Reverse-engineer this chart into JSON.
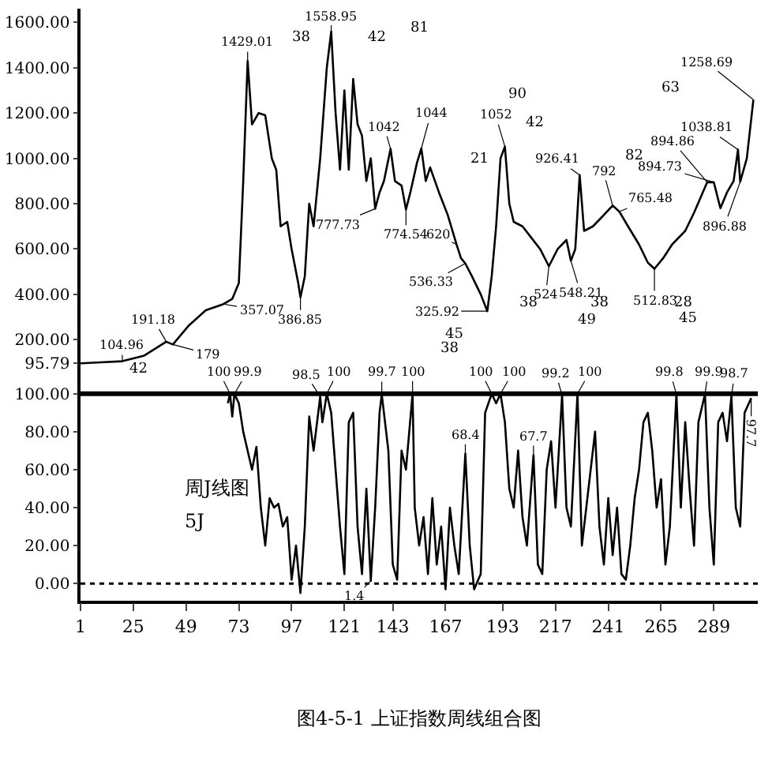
{
  "chart_data": [
    {
      "type": "line",
      "tick_labels": "y",
      "color": "#000000",
      "marker": "none",
      "line_style": "solid",
      "x": [
        1,
        10,
        20,
        30,
        40,
        43,
        50,
        58,
        66,
        70,
        73,
        75,
        77,
        79,
        82,
        85,
        88,
        90,
        92,
        95,
        97,
        100,
        101,
        103,
        105,
        107,
        110,
        113,
        115,
        117,
        119,
        121,
        123,
        125,
        127,
        129,
        131,
        133,
        135,
        137,
        139,
        142,
        144,
        147,
        149,
        151,
        154,
        156,
        158,
        160,
        164,
        168,
        172,
        174,
        176,
        179,
        183,
        186,
        188,
        190,
        192,
        194,
        196,
        198,
        202,
        206,
        210,
        214,
        218,
        222,
        224,
        226,
        228,
        230,
        234,
        238,
        243,
        246,
        250,
        255,
        259,
        262,
        266,
        270,
        276,
        280,
        286,
        289,
        292,
        295,
        298,
        300,
        301,
        304,
        307
      ],
      "values": [
        95.79,
        100,
        104.96,
        130,
        191.18,
        179,
        260,
        330,
        357.07,
        380,
        450,
        900,
        1429.01,
        1150,
        1200,
        1190,
        1000,
        950,
        700,
        720,
        600,
        450,
        386.85,
        480,
        800,
        700,
        1000,
        1400,
        1558.95,
        1200,
        950,
        1300,
        950,
        1350,
        1150,
        1100,
        900,
        1000,
        777.73,
        850,
        900,
        1042,
        900,
        880,
        774.54,
        850,
        980,
        1044,
        900,
        960,
        850,
        750,
        620,
        560,
        536.33,
        480,
        400,
        325.92,
        480,
        700,
        1000,
        1052,
        800,
        720,
        700,
        650,
        600,
        524,
        600,
        640,
        548.21,
        600,
        926.41,
        680,
        700,
        740,
        792,
        765.48,
        700,
        620,
        540,
        512.83,
        560,
        620,
        680,
        760,
        894.86,
        894.73,
        780,
        850,
        900,
        1038.81,
        896.88,
        1000,
        1258.69
      ],
      "xlim": [
        1,
        309
      ],
      "ylim": [
        20,
        1660
      ],
      "yticks": [
        {
          "value": 95.79,
          "label": "95.79"
        },
        {
          "value": 200,
          "label": "200.00"
        },
        {
          "value": 400,
          "label": "400.00"
        },
        {
          "value": 600,
          "label": "600.00"
        },
        {
          "value": 800,
          "label": "800.00"
        },
        {
          "value": 1000,
          "label": "1000.00"
        },
        {
          "value": 1200,
          "label": "1200.00"
        },
        {
          "value": 1400,
          "label": "1400.00"
        },
        {
          "value": 1600,
          "label": "1600.00"
        }
      ],
      "annotations": [
        {
          "text": "104.96",
          "x": 20,
          "y": 104.96
        },
        {
          "text": "191.18",
          "x": 40,
          "y": 191.18
        },
        {
          "text": "179",
          "x": 43,
          "y": 179
        },
        {
          "text": "357.07",
          "x": 66,
          "y": 357.07
        },
        {
          "text": "1429.01",
          "x": 77,
          "y": 1429.01
        },
        {
          "text": "386.85",
          "x": 101,
          "y": 386.85
        },
        {
          "text": "1558.95",
          "x": 115,
          "y": 1558.95
        },
        {
          "text": "777.73",
          "x": 135,
          "y": 777.73
        },
        {
          "text": "1042",
          "x": 142,
          "y": 1042
        },
        {
          "text": "774.54",
          "x": 149,
          "y": 774.54
        },
        {
          "text": "1044",
          "x": 156,
          "y": 1044
        },
        {
          "text": "620",
          "x": 172,
          "y": 620
        },
        {
          "text": "536.33",
          "x": 176,
          "y": 536.33
        },
        {
          "text": "325.92",
          "x": 186,
          "y": 325.92
        },
        {
          "text": "1052",
          "x": 194,
          "y": 1052
        },
        {
          "text": "524",
          "x": 214,
          "y": 524
        },
        {
          "text": "548.21",
          "x": 224,
          "y": 548.21
        },
        {
          "text": "926.41",
          "x": 228,
          "y": 926.41
        },
        {
          "text": "792",
          "x": 243,
          "y": 792
        },
        {
          "text": "765.48",
          "x": 246,
          "y": 765.48
        },
        {
          "text": "512.83",
          "x": 262,
          "y": 512.83
        },
        {
          "text": "894.86",
          "x": 286,
          "y": 894.86
        },
        {
          "text": "894.73",
          "x": 289,
          "y": 894.73
        },
        {
          "text": "1038.81",
          "x": 300,
          "y": 1038.81
        },
        {
          "text": "896.88",
          "x": 301,
          "y": 896.88
        },
        {
          "text": "1258.69",
          "x": 307,
          "y": 1258.69
        },
        "42",
        "38",
        "42",
        "81",
        "90",
        "42",
        "63",
        "21",
        "82",
        "45",
        "38",
        "38",
        "38",
        "28",
        "49",
        "45"
      ]
    },
    {
      "type": "line",
      "color": "#000000",
      "marker": "none",
      "line_style": "solid",
      "x": [
        68,
        69,
        70,
        71,
        73,
        75,
        77,
        79,
        81,
        83,
        85,
        87,
        89,
        91,
        93,
        95,
        97,
        99,
        101,
        103,
        105,
        107,
        110,
        111,
        113,
        115,
        117,
        119,
        121,
        123,
        125,
        127,
        129,
        131,
        133,
        135,
        137,
        138,
        141,
        143,
        145,
        147,
        149,
        152,
        153,
        155,
        157,
        159,
        161,
        163,
        165,
        167,
        169,
        171,
        173,
        176,
        178,
        180,
        183,
        185,
        188,
        190,
        192,
        194,
        196,
        198,
        200,
        202,
        204,
        207,
        209,
        211,
        213,
        215,
        217,
        220,
        222,
        224,
        227,
        229,
        231,
        233,
        235,
        237,
        239,
        241,
        243,
        245,
        247,
        249,
        251,
        253,
        255,
        257,
        259,
        261,
        263,
        265,
        267,
        269,
        272,
        274,
        276,
        278,
        280,
        282,
        285,
        287,
        289,
        291,
        293,
        295,
        297,
        299,
        301,
        303,
        306
      ],
      "values": [
        95,
        100,
        88,
        99.9,
        95,
        80,
        70,
        60,
        72,
        40,
        20,
        45,
        40,
        42,
        30,
        35,
        2,
        20,
        -5,
        30,
        88,
        70,
        98.5,
        85,
        100,
        90,
        60,
        30,
        5,
        85,
        90,
        30,
        5,
        50,
        1.4,
        40,
        90,
        99.7,
        70,
        10,
        2,
        70,
        60,
        100,
        40,
        20,
        35,
        5,
        45,
        10,
        30,
        -3,
        40,
        20,
        5,
        68.4,
        20,
        -3,
        5,
        90,
        100,
        95,
        100,
        85,
        50,
        40,
        70,
        35,
        20,
        67.7,
        10,
        5,
        60,
        75,
        40,
        99.2,
        40,
        30,
        100,
        20,
        40,
        60,
        80,
        30,
        10,
        45,
        15,
        40,
        5,
        2,
        20,
        45,
        60,
        85,
        90,
        70,
        40,
        55,
        10,
        30,
        99.8,
        40,
        85,
        50,
        20,
        85,
        99.9,
        40,
        10,
        85,
        90,
        75,
        98.7,
        40,
        30,
        90,
        97.7
      ],
      "xlim": [
        1,
        309
      ],
      "ylim": [
        -9,
        107
      ],
      "xticks": [
        1,
        25,
        49,
        73,
        97,
        121,
        143,
        167,
        193,
        217,
        241,
        265,
        289
      ],
      "yticks": [
        {
          "value": 0,
          "label": "0.00"
        },
        {
          "value": 20,
          "label": "20.00"
        },
        {
          "value": 40,
          "label": "40.00"
        },
        {
          "value": 60,
          "label": "60.00"
        },
        {
          "value": 80,
          "label": "80.00"
        },
        {
          "value": 100,
          "label": "100.00"
        }
      ],
      "ref_lines": [
        {
          "axis": "y",
          "value": 100,
          "line_style": "solid"
        },
        {
          "axis": "y",
          "value": 0,
          "line_style": "dotted"
        }
      ],
      "annotations": [
        {
          "text": "100",
          "x": 69,
          "y": 100
        },
        {
          "text": "99.9",
          "x": 71,
          "y": 99.9
        },
        {
          "text": "98.5",
          "x": 110,
          "y": 98.5
        },
        {
          "text": "100",
          "x": 113,
          "y": 100
        },
        {
          "text": "99.7",
          "x": 138,
          "y": 99.7
        },
        {
          "text": "100",
          "x": 152,
          "y": 100
        },
        {
          "text": "100",
          "x": 188,
          "y": 100
        },
        {
          "text": "100",
          "x": 192,
          "y": 100
        },
        {
          "text": "99.2",
          "x": 220,
          "y": 99.2
        },
        {
          "text": "100",
          "x": 227,
          "y": 100
        },
        {
          "text": "99.8",
          "x": 272,
          "y": 99.8
        },
        {
          "text": "99.9",
          "x": 285,
          "y": 99.9
        },
        {
          "text": "98.7",
          "x": 297,
          "y": 98.7
        },
        {
          "text": "97.7",
          "x": 306,
          "y": 97.7
        },
        {
          "text": "68.4",
          "x": 176,
          "y": 68.4
        },
        {
          "text": "67.7",
          "x": 207,
          "y": 67.7
        },
        {
          "text": "1.4",
          "x": 133,
          "y": 1.4
        },
        "周J线图",
        "5J",
        "图4-5-1 上证指数周线组合图"
      ]
    }
  ]
}
